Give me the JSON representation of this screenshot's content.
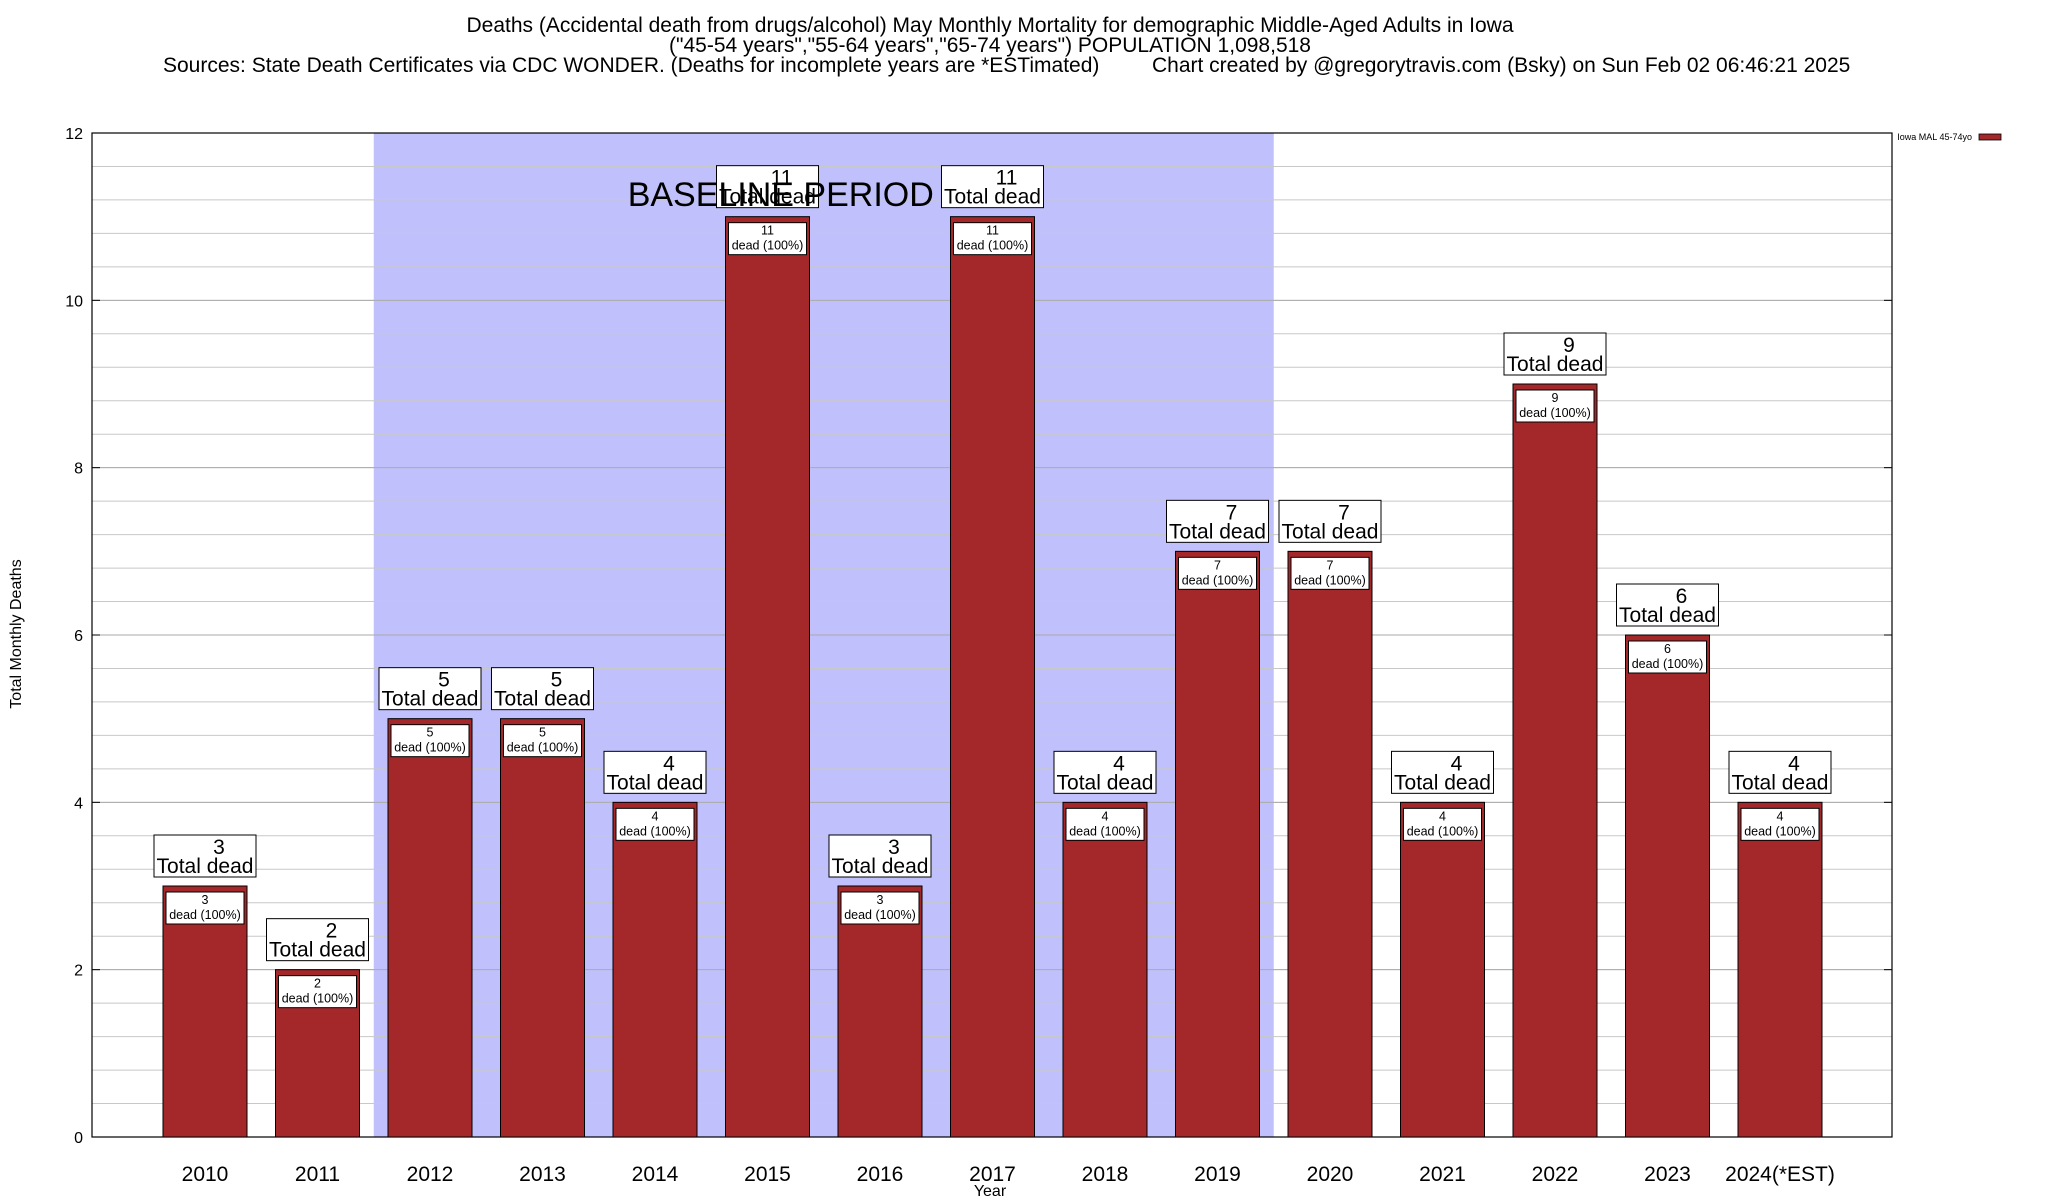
{
  "chart_data": {
    "type": "bar",
    "title": "Deaths (Accidental death from drugs/alcohol) May Monthly Mortality for demographic Middle-Aged Adults in Iowa",
    "subtitle": "(\"45-54 years\",\"55-64 years\",\"65-74 years\") POPULATION 1,098,518",
    "source_line": "Sources: State Death Certificates via CDC WONDER. (Deaths for incomplete years are *ESTimated)",
    "credit_line": "Chart created by @gregorytravis.com (Bsky) on Sun Feb 02 06:46:21 2025",
    "xlabel": "Year",
    "ylabel": "Total Monthly Deaths",
    "categories": [
      "2010",
      "2011",
      "2012",
      "2013",
      "2014",
      "2015",
      "2016",
      "2017",
      "2018",
      "2019",
      "2020",
      "2021",
      "2022",
      "2023",
      "2024(*EST)"
    ],
    "series": [
      {
        "name": "Iowa MAL 45-74yo",
        "values": [
          3,
          2,
          5,
          5,
          4,
          11,
          3,
          11,
          4,
          7,
          7,
          4,
          9,
          6,
          4
        ]
      }
    ],
    "top_label_suffix": "Total dead",
    "inner_label_suffix": "dead (100%)",
    "ylim": [
      0,
      12
    ],
    "yticks": [
      0,
      2,
      4,
      6,
      8,
      10,
      12
    ],
    "baseline_period": {
      "label": "BASELINE PERIOD",
      "from": "2012",
      "to": "2019"
    },
    "grid": true,
    "legend_position": "top-right",
    "colors": {
      "bar": "#a4282a",
      "baseline_band": "#c0c0fc",
      "grid": "#c8c8c8"
    }
  }
}
